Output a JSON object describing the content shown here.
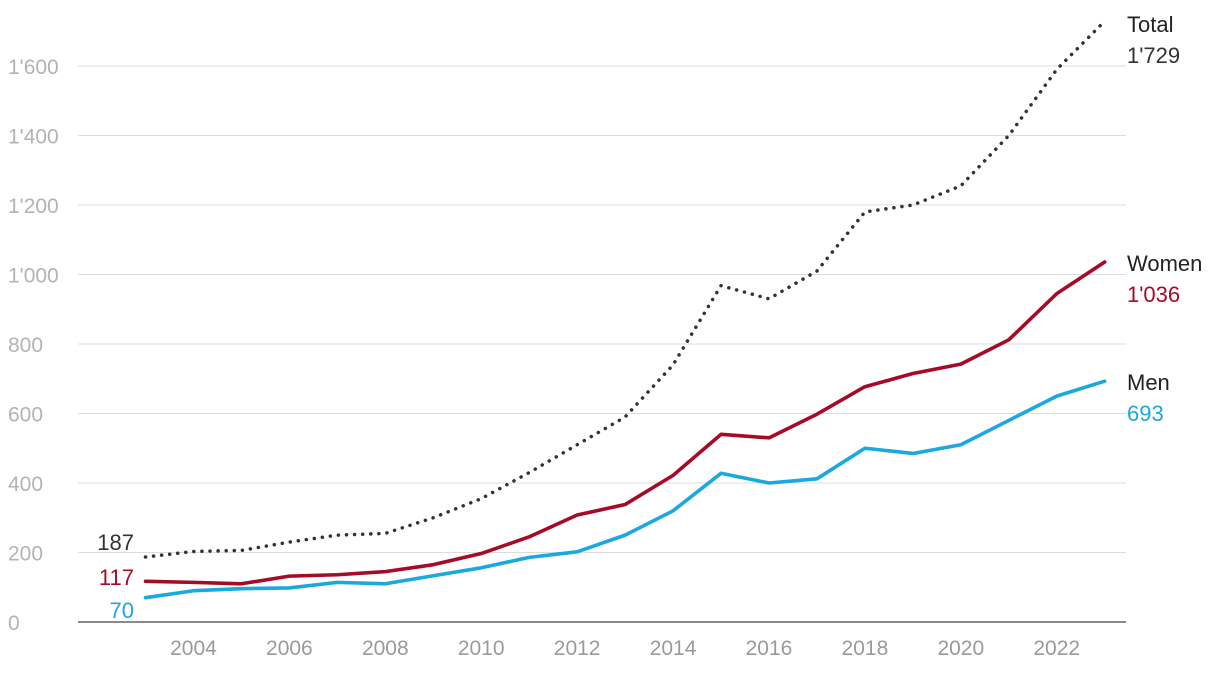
{
  "chart_data": {
    "type": "line",
    "title": "",
    "xlabel": "",
    "ylabel": "",
    "x": [
      2003,
      2004,
      2005,
      2006,
      2007,
      2008,
      2009,
      2010,
      2011,
      2012,
      2013,
      2014,
      2015,
      2016,
      2017,
      2018,
      2019,
      2020,
      2021,
      2022,
      2023
    ],
    "xticks": [
      "2004",
      "2006",
      "2008",
      "2010",
      "2012",
      "2014",
      "2016",
      "2018",
      "2020",
      "2022"
    ],
    "yticks": [
      "0",
      "200",
      "400",
      "600",
      "800",
      "1'000",
      "1'200",
      "1'400",
      "1'600"
    ],
    "ylim": [
      0,
      1729
    ],
    "grid": true,
    "series": [
      {
        "name": "Total",
        "color": "#333333",
        "style": "dotted",
        "start_label": "187",
        "end_label": "1'729",
        "values": [
          187,
          203,
          206,
          230,
          250,
          255,
          300,
          355,
          430,
          510,
          590,
          740,
          968,
          930,
          1010,
          1180,
          1200,
          1255,
          1400,
          1590,
          1729
        ]
      },
      {
        "name": "Women",
        "color": "#a50b26",
        "style": "solid",
        "start_label": "117",
        "end_label": "1'036",
        "values": [
          117,
          114,
          110,
          132,
          136,
          145,
          165,
          197,
          245,
          308,
          338,
          422,
          540,
          530,
          598,
          677,
          715,
          742,
          812,
          945,
          1036
        ]
      },
      {
        "name": "Men",
        "color": "#1ba8df",
        "style": "solid",
        "start_label": "70",
        "end_label": "693",
        "values": [
          70,
          90,
          96,
          98,
          114,
          110,
          133,
          156,
          186,
          202,
          250,
          320,
          428,
          400,
          412,
          500,
          485,
          510,
          580,
          650,
          693
        ]
      }
    ]
  }
}
